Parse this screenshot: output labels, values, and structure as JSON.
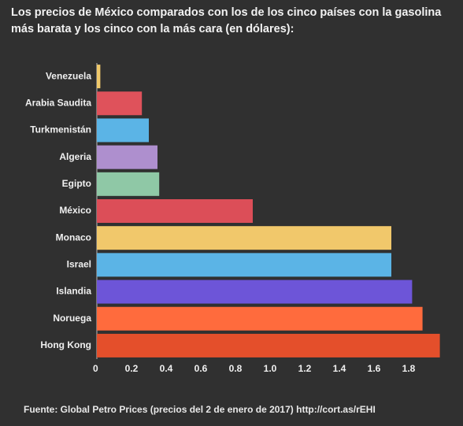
{
  "chart_data": {
    "type": "bar",
    "orientation": "horizontal",
    "title": "Los precios de México comparados con los de los cinco países con la gasolina más barata y los cinco con la más cara (en dólares):",
    "categories": [
      "Venezuela",
      "Arabia Saudita",
      "Turkmenistán",
      "Algeria",
      "Egipto",
      "México",
      "Monaco",
      "Israel",
      "Islandia",
      "Noruega",
      "Hong Kong"
    ],
    "values": [
      0.02,
      0.26,
      0.3,
      0.35,
      0.36,
      0.9,
      1.7,
      1.7,
      1.82,
      1.88,
      1.98
    ],
    "colors": [
      "#f0c96a",
      "#df525b",
      "#5bb4e6",
      "#ae8fce",
      "#8fc8a6",
      "#dc4e58",
      "#f1c86b",
      "#5bb4e6",
      "#6d55d8",
      "#ff6b3d",
      "#e44f2b"
    ],
    "xlim": [
      0,
      2
    ],
    "xticks": [
      0,
      0.2,
      0.4,
      0.6,
      0.8,
      {
        "value": 1,
        "label": "1.0"
      },
      1.2,
      1.4,
      1.6,
      1.8
    ],
    "source": "Fuente: Global Petro Prices (precios del 2 de enero de 2017) http://cort.as/rEHI"
  }
}
